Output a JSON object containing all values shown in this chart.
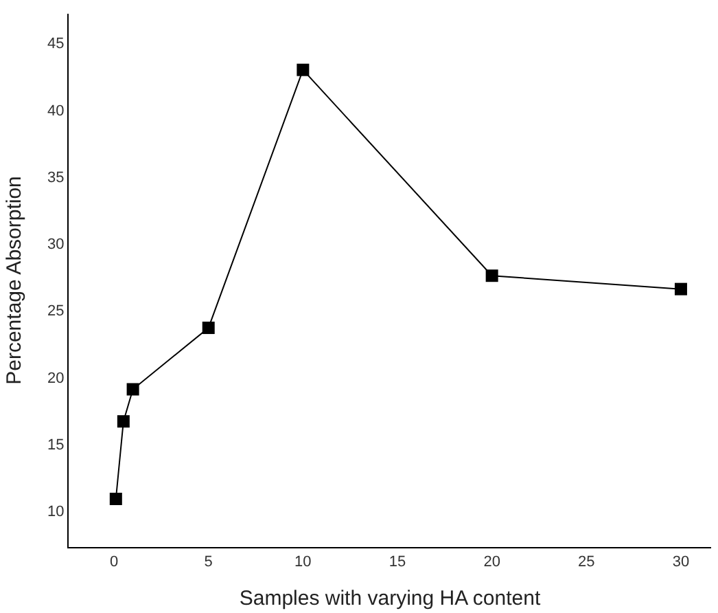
{
  "chart_data": {
    "type": "line",
    "xlabel": "Samples with varying HA content",
    "ylabel": "Percentage Absorption",
    "x": [
      0.1,
      0.5,
      1,
      5,
      10,
      20,
      30
    ],
    "series": [
      {
        "color": "#000000",
        "values": [
          10.9,
          16.7,
          19.1,
          23.7,
          43.0,
          27.6,
          26.6
        ]
      }
    ],
    "xlim": [
      -2.4,
      31.6
    ],
    "xticks": [
      0,
      5,
      10,
      15,
      20,
      25,
      30
    ],
    "ylim": [
      7.3,
      47.2
    ],
    "yticks": [
      10,
      15,
      20,
      25,
      30,
      35,
      40,
      45
    ],
    "marker": "square",
    "line_style": "solid",
    "legend": false
  }
}
